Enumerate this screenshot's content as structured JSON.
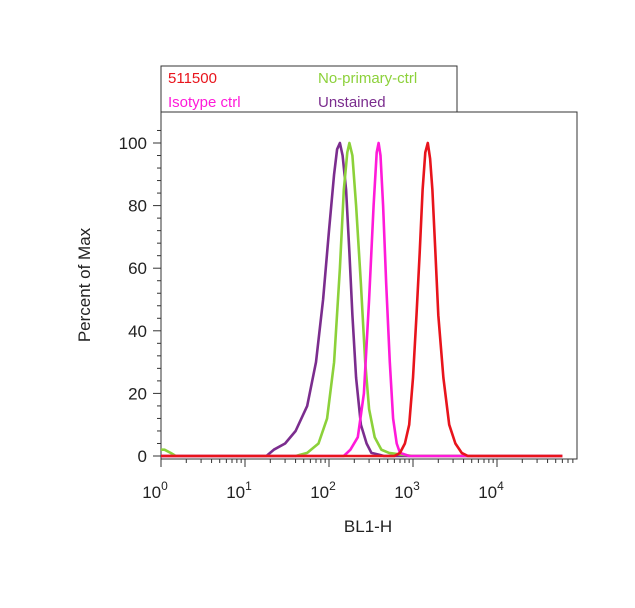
{
  "chart_data": {
    "type": "line",
    "xlabel": "BL1-H",
    "ylabel": "Percent of Max",
    "xscale": "log",
    "xlim": [
      1,
      60000
    ],
    "ylim": [
      0,
      110
    ],
    "yticks": [
      0,
      20,
      40,
      60,
      80,
      100
    ],
    "xticks": [
      {
        "value": 1,
        "base": "10",
        "exp": "0"
      },
      {
        "value": 10,
        "base": "10",
        "exp": "1"
      },
      {
        "value": 100,
        "base": "10",
        "exp": "2"
      },
      {
        "value": 1000,
        "base": "10",
        "exp": "3"
      },
      {
        "value": 10000,
        "base": "10",
        "exp": "4"
      }
    ],
    "grid": false,
    "legend_position": "top-left, above plot",
    "series": [
      {
        "name": "Unstained",
        "color": "#7b2d8e",
        "x": [
          1,
          18,
          22,
          30,
          40,
          55,
          70,
          85,
          100,
          115,
          125,
          135,
          145,
          160,
          175,
          190,
          210,
          240,
          280,
          320,
          380,
          450,
          60000
        ],
        "y": [
          0,
          0,
          2,
          4,
          8,
          16,
          30,
          50,
          72,
          90,
          98,
          100,
          96,
          85,
          65,
          45,
          25,
          10,
          4,
          1,
          0.5,
          0,
          0
        ]
      },
      {
        "name": "No-primary-ctrl",
        "color": "#8cd13a",
        "x": [
          1,
          1.1,
          1.3,
          1.5,
          40,
          55,
          75,
          95,
          115,
          135,
          150,
          165,
          175,
          190,
          210,
          240,
          270,
          300,
          350,
          420,
          520,
          700,
          1000,
          60000
        ],
        "y": [
          2,
          2,
          1,
          0,
          0,
          1,
          4,
          12,
          30,
          60,
          85,
          97,
          100,
          96,
          80,
          55,
          30,
          15,
          6,
          2,
          1,
          0.5,
          0,
          0
        ]
      },
      {
        "name": "Isotype ctrl",
        "color": "#ff1ad9",
        "x": [
          1,
          150,
          180,
          220,
          260,
          300,
          340,
          370,
          390,
          410,
          440,
          480,
          530,
          580,
          640,
          700,
          900,
          60000
        ],
        "y": [
          0,
          0,
          2,
          6,
          20,
          50,
          80,
          97,
          100,
          96,
          80,
          55,
          30,
          12,
          4,
          1,
          0,
          0
        ]
      },
      {
        "name": "511500",
        "color": "#e8141c",
        "x": [
          1,
          600,
          700,
          800,
          900,
          1000,
          1100,
          1200,
          1300,
          1400,
          1500,
          1600,
          1700,
          1850,
          2000,
          2300,
          2700,
          3200,
          3800,
          4500,
          60000
        ],
        "y": [
          0,
          0,
          1,
          4,
          10,
          25,
          45,
          65,
          85,
          97,
          100,
          95,
          85,
          65,
          45,
          25,
          10,
          4,
          1,
          0,
          0
        ]
      }
    ],
    "legend": [
      {
        "name": "511500",
        "color": "#e8141c"
      },
      {
        "name": "No-primary-ctrl",
        "color": "#8cd13a"
      },
      {
        "name": "Isotype ctrl",
        "color": "#ff1ad9"
      },
      {
        "name": "Unstained",
        "color": "#7b2d8e"
      }
    ]
  }
}
